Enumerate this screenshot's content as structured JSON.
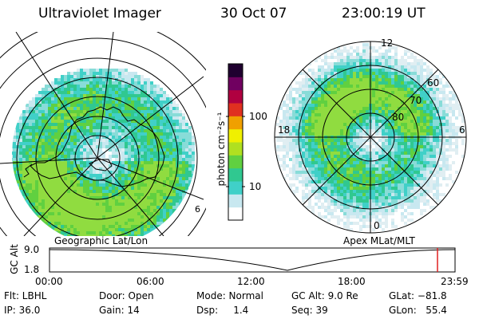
{
  "header": {
    "instrument": "Ultraviolet Imager",
    "date": "30 Oct 07",
    "time": "23:00:19 UT"
  },
  "left_panel": {
    "caption": "Geographic Lat/Lon"
  },
  "right_panel": {
    "caption": "Apex MLat/MLT",
    "mlt_labels": {
      "top": "12",
      "left": "18",
      "right": "6",
      "bottom": "0"
    },
    "lat_labels": [
      "60",
      "70",
      "80"
    ]
  },
  "colorbar": {
    "unit_label": "photon cm⁻²s⁻¹",
    "ticks": [
      "100",
      "10"
    ],
    "tick_values": [
      100,
      10
    ],
    "scale": "log",
    "colors": [
      "#ffffff",
      "#c8e8f0",
      "#40d0c8",
      "#30c890",
      "#60d040",
      "#b0e020",
      "#f0f000",
      "#f0a000",
      "#e03020",
      "#b00040",
      "#700060",
      "#200030"
    ]
  },
  "altitude_plot": {
    "ylabel": "GC Alt",
    "y_ticks": [
      "9.0",
      "1.8"
    ],
    "x_ticks": [
      "00:00",
      "06:00",
      "12:00",
      "18:00",
      "23:59"
    ],
    "current_time_marker_color": "#e02020"
  },
  "status": {
    "flt": "Flt: LBHL",
    "ip": "IP: 36.0",
    "door": "Door: Open",
    "gain": "Gain: 14",
    "mode": "Mode: Normal",
    "dsp": "Dsp:     1.4",
    "gc_alt": "GC Alt: 9.0 Re",
    "seq": "Seq: 39",
    "glat": "GLat: −81.8",
    "glon": "GLon:   55.4"
  }
}
